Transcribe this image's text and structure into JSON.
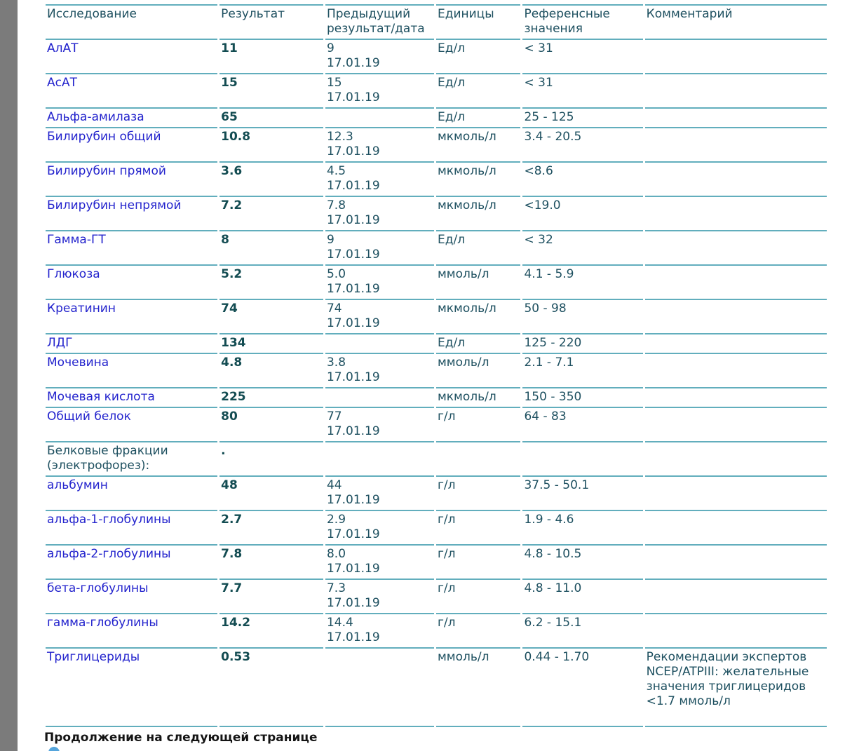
{
  "page": {
    "continuation_note": "Продолжение на следующей странице"
  },
  "colors": {
    "rule_line": "#62aebd",
    "header_text": "#1e5060",
    "test_link_blue": "#2323cd",
    "result_text": "#134c52",
    "page_edge_gray": "#7b7b7b",
    "note_text": "#141414",
    "bullet_blue": "#55a5dc"
  },
  "table": {
    "columns": [
      {
        "key": "name",
        "label": "Исследование"
      },
      {
        "key": "result",
        "label": "Результат"
      },
      {
        "key": "previous",
        "label": "Предыдущий результат/дата"
      },
      {
        "key": "units",
        "label": "Единицы"
      },
      {
        "key": "reference",
        "label": "Референсные значения"
      },
      {
        "key": "comment",
        "label": "Комментарий"
      }
    ],
    "rows": [
      {
        "name": "АлАТ",
        "link": true,
        "result": "11",
        "prev_value": "9",
        "prev_date": "17.01.19",
        "units": "Ед/л",
        "reference": "< 31",
        "comment": ""
      },
      {
        "name": "АсАТ",
        "link": true,
        "result": "15",
        "prev_value": "15",
        "prev_date": "17.01.19",
        "units": "Ед/л",
        "reference": "< 31",
        "comment": ""
      },
      {
        "name": "Альфа-амилаза",
        "link": true,
        "result": "65",
        "prev_value": "",
        "prev_date": "",
        "units": "Ед/л",
        "reference": "25 - 125",
        "comment": ""
      },
      {
        "name": "Билирубин общий",
        "link": true,
        "result": "10.8",
        "prev_value": "12.3",
        "prev_date": "17.01.19",
        "units": "мкмоль/л",
        "reference": "3.4 - 20.5",
        "comment": ""
      },
      {
        "name": "Билирубин прямой",
        "link": true,
        "result": "3.6",
        "prev_value": "4.5",
        "prev_date": "17.01.19",
        "units": "мкмоль/л",
        "reference": "<8.6",
        "comment": ""
      },
      {
        "name": "Билирубин непрямой",
        "link": true,
        "result": "7.2",
        "prev_value": "7.8",
        "prev_date": "17.01.19",
        "units": "мкмоль/л",
        "reference": "<19.0",
        "comment": ""
      },
      {
        "name": "Гамма-ГТ",
        "link": true,
        "result": "8",
        "prev_value": "9",
        "prev_date": "17.01.19",
        "units": "Ед/л",
        "reference": "< 32",
        "comment": ""
      },
      {
        "name": "Глюкоза",
        "link": true,
        "result": "5.2",
        "prev_value": "5.0",
        "prev_date": "17.01.19",
        "units": "ммоль/л",
        "reference": "4.1 - 5.9",
        "comment": ""
      },
      {
        "name": "Креатинин",
        "link": true,
        "result": "74",
        "prev_value": "74",
        "prev_date": "17.01.19",
        "units": "мкмоль/л",
        "reference": "50 - 98",
        "comment": ""
      },
      {
        "name": "ЛДГ",
        "link": true,
        "result": "134",
        "prev_value": "",
        "prev_date": "",
        "units": "Ед/л",
        "reference": "125 - 220",
        "comment": ""
      },
      {
        "name": "Мочевина",
        "link": true,
        "result": "4.8",
        "prev_value": "3.8",
        "prev_date": "17.01.19",
        "units": "ммоль/л",
        "reference": "2.1 - 7.1",
        "comment": ""
      },
      {
        "name": "Мочевая кислота",
        "link": true,
        "result": "225",
        "prev_value": "",
        "prev_date": "",
        "units": "мкмоль/л",
        "reference": "150 - 350",
        "comment": ""
      },
      {
        "name": "Общий белок",
        "link": true,
        "result": "80",
        "prev_value": "77",
        "prev_date": "17.01.19",
        "units": "г/л",
        "reference": "64 - 83",
        "comment": ""
      },
      {
        "name": "Белковые фракции (электрофорез):",
        "link": false,
        "result": ".",
        "prev_value": "",
        "prev_date": "",
        "units": "",
        "reference": "",
        "comment": ""
      },
      {
        "name": "альбумин",
        "link": true,
        "result": "48",
        "prev_value": "44",
        "prev_date": "17.01.19",
        "units": "г/л",
        "reference": "37.5 - 50.1",
        "comment": ""
      },
      {
        "name": "альфа-1-глобулины",
        "link": true,
        "result": "2.7",
        "prev_value": "2.9",
        "prev_date": "17.01.19",
        "units": "г/л",
        "reference": "1.9 - 4.6",
        "comment": ""
      },
      {
        "name": "альфа-2-глобулины",
        "link": true,
        "result": "7.8",
        "prev_value": "8.0",
        "prev_date": "17.01.19",
        "units": "г/л",
        "reference": "4.8 - 10.5",
        "comment": ""
      },
      {
        "name": "бета-глобулины",
        "link": true,
        "result": "7.7",
        "prev_value": "7.3",
        "prev_date": "17.01.19",
        "units": "г/л",
        "reference": "4.8 - 11.0",
        "comment": ""
      },
      {
        "name": "гамма-глобулины",
        "link": true,
        "result": "14.2",
        "prev_value": "14.4",
        "prev_date": "17.01.19",
        "units": "г/л",
        "reference": "6.2 - 15.1",
        "comment": ""
      },
      {
        "name": "Триглицериды",
        "link": true,
        "result": "0.53",
        "prev_value": "",
        "prev_date": "",
        "units": "ммоль/л",
        "reference": "0.44 - 1.70",
        "comment": "Рекомендации экспертов NCEP/ATPIII: желательные значения триглицеридов <1.7 ммоль/л",
        "tall": true
      }
    ]
  }
}
